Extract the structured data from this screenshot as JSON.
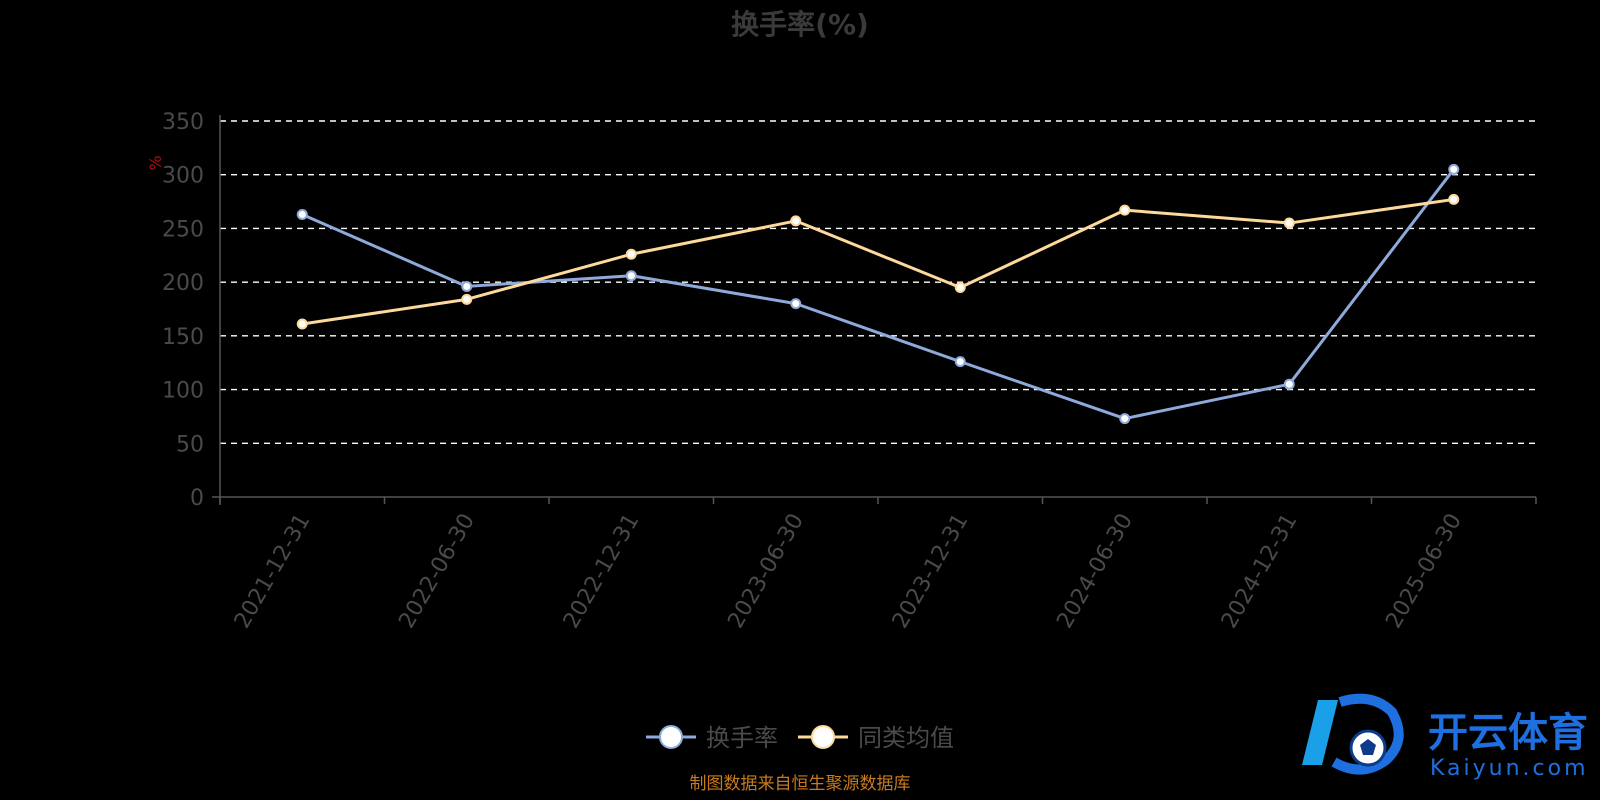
{
  "chart_data": {
    "type": "line",
    "title": "换手率(%)",
    "ylabel": "%",
    "ylim": [
      0,
      350
    ],
    "yticks": [
      0,
      50,
      100,
      150,
      200,
      250,
      300,
      350
    ],
    "categories": [
      "2021-12-31",
      "2022-06-30",
      "2022-12-31",
      "2023-06-30",
      "2023-12-31",
      "2024-06-30",
      "2024-12-31",
      "2025-06-30"
    ],
    "series": [
      {
        "name": "换手率",
        "color": "#8eaadb",
        "values": [
          263,
          196,
          206,
          180,
          126,
          73,
          105,
          305
        ]
      },
      {
        "name": "同类均值",
        "color": "#fdd99b",
        "values": [
          161,
          184,
          226,
          257,
          195,
          267,
          255,
          277
        ]
      }
    ],
    "grid": true,
    "legend_position": "bottom"
  },
  "source_note": "制图数据来自恒生聚源数据库",
  "watermark": {
    "cn": "开云体育",
    "en": "Kaiyun.com",
    "color": "#1e6fe0"
  }
}
